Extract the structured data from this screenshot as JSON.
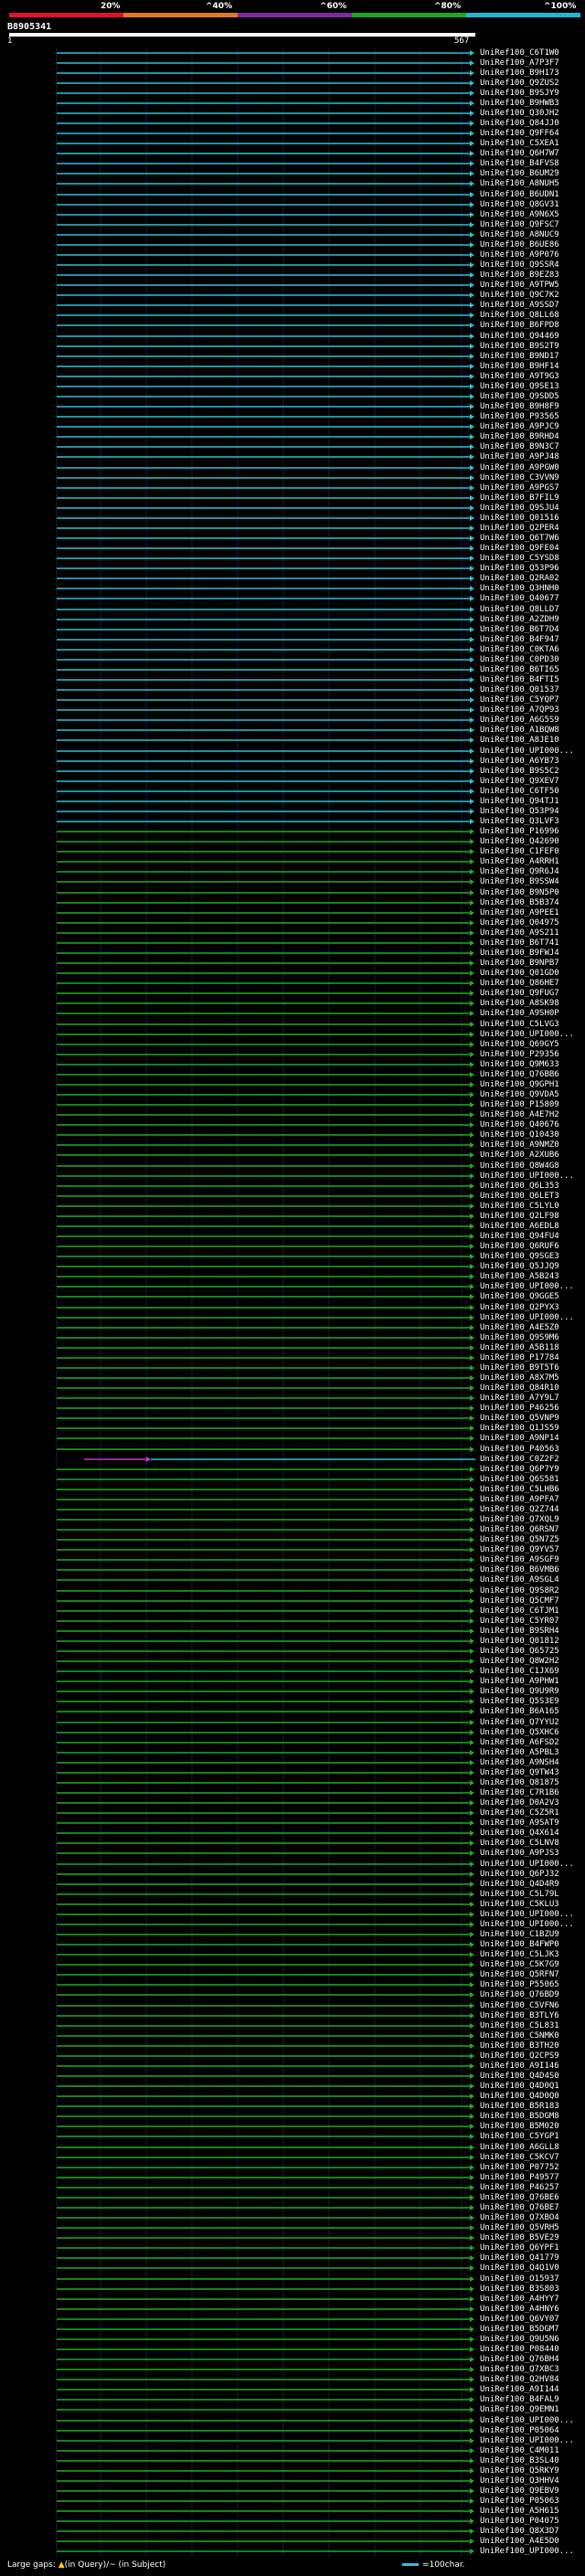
{
  "scale": {
    "labels": [
      "20%",
      "^40%",
      "^60%",
      "^80%",
      "^100%"
    ],
    "colors": [
      "#e0102a",
      "#e07a1a",
      "#7a2aa0",
      "#18a818",
      "#20b8d0"
    ]
  },
  "query": {
    "id": "B8905341",
    "start": "1",
    "end": "567"
  },
  "legend": {
    "left_prefix": "Large gaps: ",
    "left_symbol": "▲",
    "left_suffix": "(in Query)/~ (in Subject)",
    "right": "=100char."
  },
  "colors": {
    "cyan": "#2fc0d8",
    "green": "#1fae1f",
    "magenta": "#cc33cc"
  },
  "hits": [
    {
      "label": "UniRef100_C6T1W0",
      "c": "c"
    },
    {
      "label": "UniRef100_A7P3F7",
      "c": "c"
    },
    {
      "label": "UniRef100_B9H173",
      "c": "c"
    },
    {
      "label": "UniRef100_Q9ZUS2",
      "c": "c"
    },
    {
      "label": "UniRef100_B9SJY9",
      "c": "c"
    },
    {
      "label": "UniRef100_B9HWB3",
      "c": "c"
    },
    {
      "label": "UniRef100_Q30JH2",
      "c": "c"
    },
    {
      "label": "UniRef100_Q84JJ0",
      "c": "c"
    },
    {
      "label": "UniRef100_Q9FF64",
      "c": "c"
    },
    {
      "label": "UniRef100_C5XEA1",
      "c": "c"
    },
    {
      "label": "UniRef100_Q6H7W7",
      "c": "c"
    },
    {
      "label": "UniRef100_B4FVS8",
      "c": "c"
    },
    {
      "label": "UniRef100_B6UM29",
      "c": "c"
    },
    {
      "label": "UniRef100_A8NUH5",
      "c": "c"
    },
    {
      "label": "UniRef100_B6UDN1",
      "c": "c"
    },
    {
      "label": "UniRef100_Q8GV31",
      "c": "c"
    },
    {
      "label": "UniRef100_A9N6X5",
      "c": "c"
    },
    {
      "label": "UniRef100_Q9FSC7",
      "c": "c"
    },
    {
      "label": "UniRef100_A8NUC9",
      "c": "c"
    },
    {
      "label": "UniRef100_B6UE86",
      "c": "c"
    },
    {
      "label": "UniRef100_A9P076",
      "c": "c"
    },
    {
      "label": "UniRef100_Q9SSR4",
      "c": "c"
    },
    {
      "label": "UniRef100_B9EZ83",
      "c": "c"
    },
    {
      "label": "UniRef100_A9TPW5",
      "c": "c"
    },
    {
      "label": "UniRef100_Q9C7K2",
      "c": "c"
    },
    {
      "label": "UniRef100_A9SSD7",
      "c": "c"
    },
    {
      "label": "UniRef100_Q8LL68",
      "c": "c"
    },
    {
      "label": "UniRef100_B6FPD8",
      "c": "c"
    },
    {
      "label": "UniRef100_Q94469",
      "c": "c"
    },
    {
      "label": "UniRef100_B9S2T9",
      "c": "c"
    },
    {
      "label": "UniRef100_B9ND17",
      "c": "c"
    },
    {
      "label": "UniRef100_B9HF14",
      "c": "c"
    },
    {
      "label": "UniRef100_A9T9G3",
      "c": "c"
    },
    {
      "label": "UniRef100_Q9SE13",
      "c": "c"
    },
    {
      "label": "UniRef100_Q9SDD5",
      "c": "c"
    },
    {
      "label": "UniRef100_B9H8F9",
      "c": "c"
    },
    {
      "label": "UniRef100_P93565",
      "c": "c"
    },
    {
      "label": "UniRef100_A9PJC9",
      "c": "c"
    },
    {
      "label": "UniRef100_B9RHD4",
      "c": "c"
    },
    {
      "label": "UniRef100_B9N3C7",
      "c": "c"
    },
    {
      "label": "UniRef100_A9PJ48",
      "c": "c"
    },
    {
      "label": "UniRef100_A9PGW0",
      "c": "c"
    },
    {
      "label": "UniRef100_C3VVN9",
      "c": "c"
    },
    {
      "label": "UniRef100_A9PGS7",
      "c": "c"
    },
    {
      "label": "UniRef100_B7FIL9",
      "c": "c"
    },
    {
      "label": "UniRef100_Q9SJU4",
      "c": "c"
    },
    {
      "label": "UniRef100_Q01516",
      "c": "c"
    },
    {
      "label": "UniRef100_Q2PER4",
      "c": "c"
    },
    {
      "label": "UniRef100_Q6T7W6",
      "c": "c"
    },
    {
      "label": "UniRef100_Q9FE04",
      "c": "c"
    },
    {
      "label": "UniRef100_C5YSD8",
      "c": "c"
    },
    {
      "label": "UniRef100_Q53P96",
      "c": "c"
    },
    {
      "label": "UniRef100_Q2RA02",
      "c": "c"
    },
    {
      "label": "UniRef100_Q3HNH0",
      "c": "c"
    },
    {
      "label": "UniRef100_Q40677",
      "c": "c"
    },
    {
      "label": "UniRef100_Q8LLD7",
      "c": "c"
    },
    {
      "label": "UniRef100_A2ZDH9",
      "c": "c"
    },
    {
      "label": "UniRef100_B6T7D4",
      "c": "c"
    },
    {
      "label": "UniRef100_B4F947",
      "c": "c"
    },
    {
      "label": "UniRef100_C0KTA6",
      "c": "c"
    },
    {
      "label": "UniRef100_C0PD30",
      "c": "c"
    },
    {
      "label": "UniRef100_B6TI65",
      "c": "c"
    },
    {
      "label": "UniRef100_B4FTI5",
      "c": "c"
    },
    {
      "label": "UniRef100_Q01537",
      "c": "c"
    },
    {
      "label": "UniRef100_C5YQP7",
      "c": "c"
    },
    {
      "label": "UniRef100_A7QP93",
      "c": "c"
    },
    {
      "label": "UniRef100_A6G5S9",
      "c": "c"
    },
    {
      "label": "UniRef100_A1BQW8",
      "c": "c"
    },
    {
      "label": "UniRef100_A8JE10",
      "c": "c"
    },
    {
      "label": "UniRef100_UPI000...",
      "c": "c"
    },
    {
      "label": "UniRef100_A6YB73",
      "c": "c"
    },
    {
      "label": "UniRef100_B9S5C2",
      "c": "c"
    },
    {
      "label": "UniRef100_Q9XEV7",
      "c": "c"
    },
    {
      "label": "UniRef100_C6TF50",
      "c": "c"
    },
    {
      "label": "UniRef100_Q94TJ1",
      "c": "c"
    },
    {
      "label": "UniRef100_Q53P94",
      "c": "c"
    },
    {
      "label": "UniRef100_Q3LVF3",
      "c": "c"
    },
    {
      "label": "UniRef100_P16996",
      "c": "g"
    },
    {
      "label": "UniRef100_Q42690",
      "c": "g"
    },
    {
      "label": "UniRef100_C1FEF0",
      "c": "g"
    },
    {
      "label": "UniRef100_A4RRH1",
      "c": "g"
    },
    {
      "label": "UniRef100_Q9R6J4",
      "c": "g"
    },
    {
      "label": "UniRef100_B9SSW4",
      "c": "g"
    },
    {
      "label": "UniRef100_B9N5P0",
      "c": "g"
    },
    {
      "label": "UniRef100_B5B374",
      "c": "g"
    },
    {
      "label": "UniRef100_A9PEE1",
      "c": "g"
    },
    {
      "label": "UniRef100_Q04975",
      "c": "g"
    },
    {
      "label": "UniRef100_A9S211",
      "c": "g"
    },
    {
      "label": "UniRef100_B6T741",
      "c": "g"
    },
    {
      "label": "UniRef100_B9FWJ4",
      "c": "g"
    },
    {
      "label": "UniRef100_B9NPB7",
      "c": "g"
    },
    {
      "label": "UniRef100_Q01GD0",
      "c": "g"
    },
    {
      "label": "UniRef100_Q86HE7",
      "c": "g"
    },
    {
      "label": "UniRef100_Q9FUG7",
      "c": "g"
    },
    {
      "label": "UniRef100_A8SK98",
      "c": "g"
    },
    {
      "label": "UniRef100_A9SH0P",
      "c": "g"
    },
    {
      "label": "UniRef100_C5LVG3",
      "c": "g"
    },
    {
      "label": "UniRef100_UPI000...",
      "c": "g"
    },
    {
      "label": "UniRef100_Q69GY5",
      "c": "g"
    },
    {
      "label": "UniRef100_P29356",
      "c": "g"
    },
    {
      "label": "UniRef100_Q9M633",
      "c": "g"
    },
    {
      "label": "UniRef100_Q76BB6",
      "c": "g"
    },
    {
      "label": "UniRef100_Q9GPH1",
      "c": "g"
    },
    {
      "label": "UniRef100_Q9VDA5",
      "c": "g"
    },
    {
      "label": "UniRef100_P15809",
      "c": "g"
    },
    {
      "label": "UniRef100_A4E7H2",
      "c": "g"
    },
    {
      "label": "UniRef100_Q40676",
      "c": "g"
    },
    {
      "label": "UniRef100_Q10430",
      "c": "g"
    },
    {
      "label": "UniRef100_A9NMZ0",
      "c": "g"
    },
    {
      "label": "UniRef100_A2XUB6",
      "c": "g"
    },
    {
      "label": "UniRef100_Q8W4G8",
      "c": "g"
    },
    {
      "label": "UniRef100_UPI000...",
      "c": "g"
    },
    {
      "label": "UniRef100_Q6L353",
      "c": "g"
    },
    {
      "label": "UniRef100_Q6LET3",
      "c": "g"
    },
    {
      "label": "UniRef100_C5LYL0",
      "c": "g"
    },
    {
      "label": "UniRef100_Q2LF98",
      "c": "g"
    },
    {
      "label": "UniRef100_A6EDL8",
      "c": "g"
    },
    {
      "label": "UniRef100_Q94FU4",
      "c": "g"
    },
    {
      "label": "UniRef100_Q6RUF6",
      "c": "g"
    },
    {
      "label": "UniRef100_Q9SGE3",
      "c": "g"
    },
    {
      "label": "UniRef100_Q5JJQ9",
      "c": "g"
    },
    {
      "label": "UniRef100_A5B243",
      "c": "g"
    },
    {
      "label": "UniRef100_UPI000...",
      "c": "g"
    },
    {
      "label": "UniRef100_Q9GGE5",
      "c": "g"
    },
    {
      "label": "UniRef100_Q2PYX3",
      "c": "g"
    },
    {
      "label": "UniRef100_UPI000...",
      "c": "g"
    },
    {
      "label": "UniRef100_A4E5Z0",
      "c": "g"
    },
    {
      "label": "UniRef100_Q9S9M6",
      "c": "g"
    },
    {
      "label": "UniRef100_A5B118",
      "c": "g"
    },
    {
      "label": "UniRef100_P17784",
      "c": "g"
    },
    {
      "label": "UniRef100_B9T5T6",
      "c": "g"
    },
    {
      "label": "UniRef100_A8X7M5",
      "c": "g"
    },
    {
      "label": "UniRef100_Q84R10",
      "c": "g"
    },
    {
      "label": "UniRef100_A7Y9L7",
      "c": "g"
    },
    {
      "label": "UniRef100_P46256",
      "c": "g"
    },
    {
      "label": "UniRef100_Q5VNP9",
      "c": "g"
    },
    {
      "label": "UniRef100_Q1JS59",
      "c": "g"
    },
    {
      "label": "UniRef100_A9NP14",
      "c": "g"
    },
    {
      "label": "UniRef100_P40563",
      "c": "g"
    },
    {
      "label": "UniRef100_C0Z2F2",
      "c": "m"
    },
    {
      "label": "UniRef100_Q6P7Y9",
      "c": "g"
    },
    {
      "label": "UniRef100_Q6S581",
      "c": "g"
    },
    {
      "label": "UniRef100_C5LHB6",
      "c": "g"
    },
    {
      "label": "UniRef100_A9PFA7",
      "c": "g"
    },
    {
      "label": "UniRef100_Q2Z744",
      "c": "g"
    },
    {
      "label": "UniRef100_Q7XQL9",
      "c": "g"
    },
    {
      "label": "UniRef100_Q6RSN7",
      "c": "g"
    },
    {
      "label": "UniRef100_Q5N7Z5",
      "c": "g"
    },
    {
      "label": "UniRef100_Q9YV57",
      "c": "g"
    },
    {
      "label": "UniRef100_A9SGF9",
      "c": "g"
    },
    {
      "label": "UniRef100_B6VMB6",
      "c": "g"
    },
    {
      "label": "UniRef100_A9SGL4",
      "c": "g"
    },
    {
      "label": "UniRef100_Q9S8R2",
      "c": "g"
    },
    {
      "label": "UniRef100_Q5CMF7",
      "c": "g"
    },
    {
      "label": "UniRef100_C6TJM1",
      "c": "g"
    },
    {
      "label": "UniRef100_C5YR07",
      "c": "g"
    },
    {
      "label": "UniRef100_B9SRH4",
      "c": "g"
    },
    {
      "label": "UniRef100_Q01812",
      "c": "g"
    },
    {
      "label": "UniRef100_Q65725",
      "c": "g"
    },
    {
      "label": "UniRef100_Q8W2H2",
      "c": "g"
    },
    {
      "label": "UniRef100_C1JX69",
      "c": "g"
    },
    {
      "label": "UniRef100_A9PHW1",
      "c": "g"
    },
    {
      "label": "UniRef100_Q9U9R9",
      "c": "g"
    },
    {
      "label": "UniRef100_Q5S3E9",
      "c": "g"
    },
    {
      "label": "UniRef100_B6A165",
      "c": "g"
    },
    {
      "label": "UniRef100_Q7YYU2",
      "c": "g"
    },
    {
      "label": "UniRef100_Q5XHC6",
      "c": "g"
    },
    {
      "label": "UniRef100_A6FSD2",
      "c": "g"
    },
    {
      "label": "UniRef100_A5PBL3",
      "c": "g"
    },
    {
      "label": "UniRef100_A9NSH4",
      "c": "g"
    },
    {
      "label": "UniRef100_Q9TW43",
      "c": "g"
    },
    {
      "label": "UniRef100_Q81875",
      "c": "g"
    },
    {
      "label": "UniRef100_C7R1B6",
      "c": "g"
    },
    {
      "label": "UniRef100_D0A2V3",
      "c": "g"
    },
    {
      "label": "UniRef100_C5Z5R1",
      "c": "g"
    },
    {
      "label": "UniRef100_A9SAT9",
      "c": "g"
    },
    {
      "label": "UniRef100_Q4X614",
      "c": "g"
    },
    {
      "label": "UniRef100_C5LNV8",
      "c": "g"
    },
    {
      "label": "UniRef100_A9PJS3",
      "c": "g"
    },
    {
      "label": "UniRef100_UPI000...",
      "c": "g"
    },
    {
      "label": "UniRef100_Q6PJ32",
      "c": "g"
    },
    {
      "label": "UniRef100_Q4D4R9",
      "c": "g"
    },
    {
      "label": "UniRef100_C5L79L",
      "c": "g"
    },
    {
      "label": "UniRef100_C5KLU3",
      "c": "g"
    },
    {
      "label": "UniRef100_UPI000...",
      "c": "g"
    },
    {
      "label": "UniRef100_UPI000...",
      "c": "g"
    },
    {
      "label": "UniRef100_C1BZU9",
      "c": "g"
    },
    {
      "label": "UniRef100_B4FWP0",
      "c": "g"
    },
    {
      "label": "UniRef100_C5LJK3",
      "c": "g"
    },
    {
      "label": "UniRef100_C5K7G9",
      "c": "g"
    },
    {
      "label": "UniRef100_Q5RFN7",
      "c": "g"
    },
    {
      "label": "UniRef100_P55065",
      "c": "g"
    },
    {
      "label": "UniRef100_Q76BD9",
      "c": "g"
    },
    {
      "label": "UniRef100_C5VFN6",
      "c": "g"
    },
    {
      "label": "UniRef100_B3TLY6",
      "c": "g"
    },
    {
      "label": "UniRef100_C5L831",
      "c": "g"
    },
    {
      "label": "UniRef100_C5NMK0",
      "c": "g"
    },
    {
      "label": "UniRef100_B3TH20",
      "c": "g"
    },
    {
      "label": "UniRef100_Q2CPS9",
      "c": "g"
    },
    {
      "label": "UniRef100_A9I146",
      "c": "g"
    },
    {
      "label": "UniRef100_Q4D4S0",
      "c": "g"
    },
    {
      "label": "UniRef100_Q4D0Q1",
      "c": "g"
    },
    {
      "label": "UniRef100_Q4D0Q0",
      "c": "g"
    },
    {
      "label": "UniRef100_B5R183",
      "c": "g"
    },
    {
      "label": "UniRef100_B5DGM8",
      "c": "g"
    },
    {
      "label": "UniRef100_B5M020",
      "c": "g"
    },
    {
      "label": "UniRef100_C5YGP1",
      "c": "g"
    },
    {
      "label": "UniRef100_A6GLL8",
      "c": "g"
    },
    {
      "label": "UniRef100_C5KCV7",
      "c": "g"
    },
    {
      "label": "UniRef100_P07752",
      "c": "g"
    },
    {
      "label": "UniRef100_P49577",
      "c": "g"
    },
    {
      "label": "UniRef100_P46257",
      "c": "g"
    },
    {
      "label": "UniRef100_Q76BE6",
      "c": "g"
    },
    {
      "label": "UniRef100_Q76BE7",
      "c": "g"
    },
    {
      "label": "UniRef100_Q7XBO4",
      "c": "g"
    },
    {
      "label": "UniRef100_Q5VRH5",
      "c": "g"
    },
    {
      "label": "UniRef100_B5VE29",
      "c": "g"
    },
    {
      "label": "UniRef100_Q6YPF1",
      "c": "g"
    },
    {
      "label": "UniRef100_Q41779",
      "c": "g"
    },
    {
      "label": "UniRef100_Q4Q1V0",
      "c": "g"
    },
    {
      "label": "UniRef100_O15937",
      "c": "g"
    },
    {
      "label": "UniRef100_B3S803",
      "c": "g"
    },
    {
      "label": "UniRef100_A4HYY7",
      "c": "g"
    },
    {
      "label": "UniRef100_A4HNY6",
      "c": "g"
    },
    {
      "label": "UniRef100_Q6VY07",
      "c": "g"
    },
    {
      "label": "UniRef100_B5DGM7",
      "c": "g"
    },
    {
      "label": "UniRef100_Q9U5N6",
      "c": "g"
    },
    {
      "label": "UniRef100_P08440",
      "c": "g"
    },
    {
      "label": "UniRef100_Q76BH4",
      "c": "g"
    },
    {
      "label": "UniRef100_Q7XBC3",
      "c": "g"
    },
    {
      "label": "UniRef100_Q2HV84",
      "c": "g"
    },
    {
      "label": "UniRef100_A9I144",
      "c": "g"
    },
    {
      "label": "UniRef100_B4FAL9",
      "c": "g"
    },
    {
      "label": "UniRef100_Q9EMN1",
      "c": "g"
    },
    {
      "label": "UniRef100_UPI000...",
      "c": "g"
    },
    {
      "label": "UniRef100_P05064",
      "c": "g"
    },
    {
      "label": "UniRef100_UPI000...",
      "c": "g"
    },
    {
      "label": "UniRef100_C4M011",
      "c": "g"
    },
    {
      "label": "UniRef100_B3SL40",
      "c": "g"
    },
    {
      "label": "UniRef100_Q5RKY9",
      "c": "g"
    },
    {
      "label": "UniRef100_Q3HHV4",
      "c": "g"
    },
    {
      "label": "UniRef100_Q9EBV9",
      "c": "g"
    },
    {
      "label": "UniRef100_P05063",
      "c": "g"
    },
    {
      "label": "UniRef100_A5H615",
      "c": "g"
    },
    {
      "label": "UniRef100_P04075",
      "c": "g"
    },
    {
      "label": "UniRef100_Q8X3D7",
      "c": "g"
    },
    {
      "label": "UniRef100_A4E5D0",
      "c": "g"
    },
    {
      "label": "UniRef100_UPI000...",
      "c": "g"
    }
  ]
}
